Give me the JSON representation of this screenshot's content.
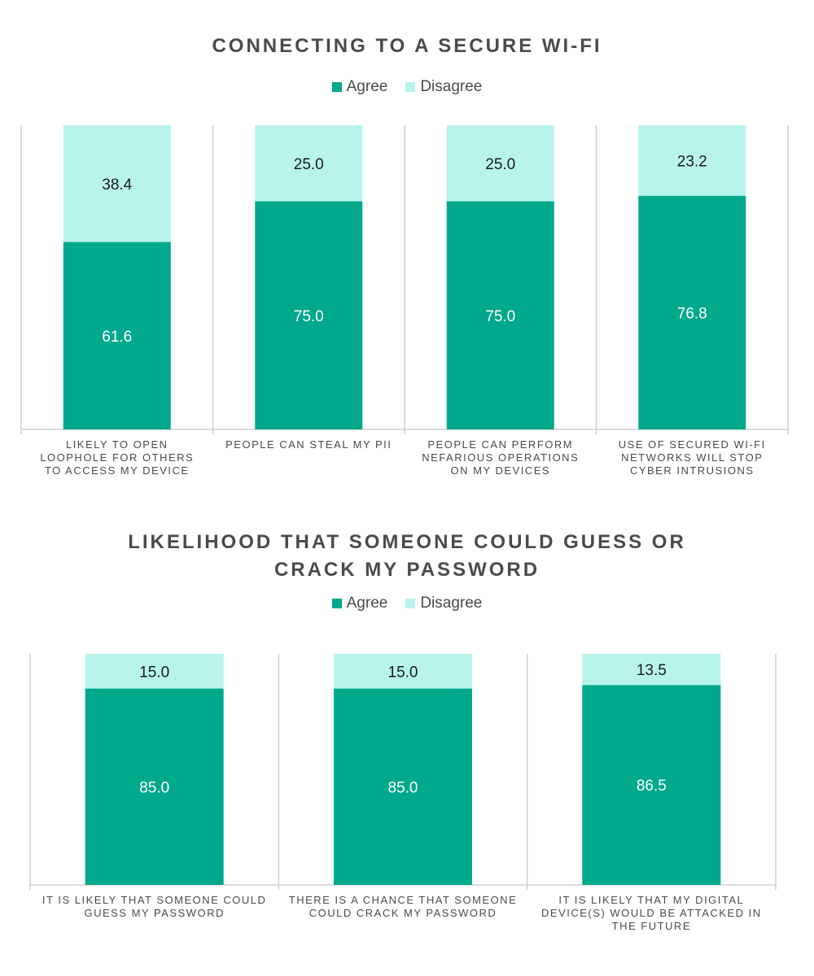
{
  "colors": {
    "agree": "#00a88c",
    "disagree": "#b8f4ec",
    "grid": "#d0d0d0",
    "text": "#4a4a4a"
  },
  "chart_data": [
    {
      "type": "bar",
      "stacked": true,
      "title": "CONNECTING TO A SECURE WI-FI",
      "legend": {
        "position": "top-center",
        "entries": [
          "Agree",
          "Disagree"
        ]
      },
      "categories": [
        "LIKELY TO OPEN LOOPHOLE FOR OTHERS TO ACCESS MY DEVICE",
        "PEOPLE CAN STEAL MY PII",
        "PEOPLE CAN PERFORM NEFARIOUS OPERATIONS ON MY DEVICES",
        "USE OF SECURED WI-FI NETWORKS WILL STOP CYBER INTRUSIONS"
      ],
      "category_lines": [
        [
          "LIKELY TO OPEN",
          "LOOPHOLE FOR OTHERS",
          "TO ACCESS MY DEVICE"
        ],
        [
          "PEOPLE CAN STEAL MY PII"
        ],
        [
          "PEOPLE CAN PERFORM",
          "NEFARIOUS OPERATIONS",
          "ON MY DEVICES"
        ],
        [
          "USE OF SECURED WI-FI",
          "NETWORKS WILL STOP",
          "CYBER INTRUSIONS"
        ]
      ],
      "series": [
        {
          "name": "Agree",
          "values": [
            61.6,
            75.0,
            75.0,
            76.8
          ]
        },
        {
          "name": "Disagree",
          "values": [
            38.4,
            25.0,
            25.0,
            23.2
          ]
        }
      ],
      "value_labels": {
        "Agree": [
          "61.6",
          "75.0",
          "75.0",
          "76.8"
        ],
        "Disagree": [
          "38.4",
          "25.0",
          "25.0",
          "23.2"
        ]
      },
      "ylim": [
        0,
        100
      ],
      "grid": false,
      "xlabel": "",
      "ylabel": ""
    },
    {
      "type": "bar",
      "stacked": true,
      "title": "LIKELIHOOD THAT SOMEONE COULD GUESS OR CRACK MY PASSWORD",
      "title_lines": [
        "LIKELIHOOD THAT SOMEONE COULD GUESS OR",
        "CRACK MY PASSWORD"
      ],
      "legend": {
        "position": "top-center",
        "entries": [
          "Agree",
          "Disagree"
        ]
      },
      "categories": [
        "IT IS LIKELY THAT SOMEONE COULD GUESS MY PASSWORD",
        "THERE IS A CHANCE THAT SOMEONE COULD CRACK MY PASSWORD",
        "IT IS LIKELY THAT MY DIGITAL DEVICE(S) WOULD BE ATTACKED IN THE FUTURE"
      ],
      "category_lines": [
        [
          "IT IS LIKELY THAT SOMEONE COULD",
          "GUESS MY PASSWORD"
        ],
        [
          "THERE IS A CHANCE THAT SOMEONE",
          "COULD CRACK MY PASSWORD"
        ],
        [
          "IT IS LIKELY THAT MY DIGITAL",
          "DEVICE(S) WOULD BE ATTACKED IN",
          "THE FUTURE"
        ]
      ],
      "series": [
        {
          "name": "Agree",
          "values": [
            85.0,
            85.0,
            86.5
          ]
        },
        {
          "name": "Disagree",
          "values": [
            15.0,
            15.0,
            13.5
          ]
        }
      ],
      "value_labels": {
        "Agree": [
          "85.0",
          "85.0",
          "86.5"
        ],
        "Disagree": [
          "15.0",
          "15.0",
          "13.5"
        ]
      },
      "ylim": [
        0,
        100
      ],
      "grid": false,
      "xlabel": "",
      "ylabel": ""
    }
  ]
}
